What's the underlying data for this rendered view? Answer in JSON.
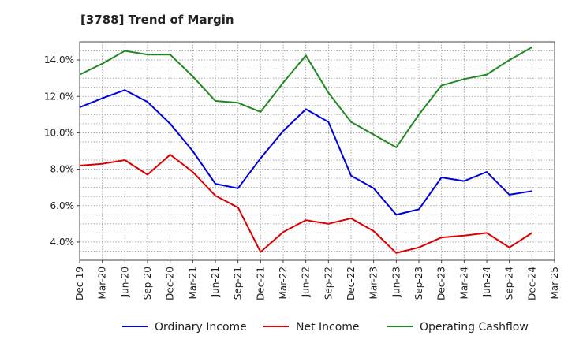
{
  "chart_data": {
    "type": "line",
    "title": "[3788]  Trend of Margin",
    "xlabel": "",
    "ylabel": "",
    "categories": [
      "Dec-19",
      "Mar-20",
      "Jun-20",
      "Sep-20",
      "Dec-20",
      "Mar-21",
      "Jun-21",
      "Sep-21",
      "Dec-21",
      "Mar-22",
      "Jun-22",
      "Sep-22",
      "Dec-22",
      "Mar-23",
      "Jun-23",
      "Sep-23",
      "Dec-23",
      "Mar-24",
      "Jun-24",
      "Sep-24",
      "Dec-24",
      "Mar-25"
    ],
    "ylim": [
      3.0,
      15.0
    ],
    "yticks": [
      4.0,
      6.0,
      8.0,
      10.0,
      12.0,
      14.0
    ],
    "ytick_labels": [
      "4.0%",
      "6.0%",
      "8.0%",
      "10.0%",
      "12.0%",
      "14.0%"
    ],
    "grid": true,
    "legend_position": "bottom",
    "series": [
      {
        "name": "Ordinary Income",
        "color": "#0000dd",
        "values": [
          11.4,
          11.9,
          12.35,
          11.7,
          10.5,
          9.0,
          7.2,
          6.95,
          8.6,
          10.1,
          11.3,
          10.6,
          7.65,
          6.95,
          5.5,
          5.8,
          7.55,
          7.35,
          7.85,
          6.6,
          6.8,
          null
        ]
      },
      {
        "name": "Net Income",
        "color": "#dd0000",
        "values": [
          8.2,
          8.3,
          8.5,
          7.7,
          8.8,
          7.85,
          6.55,
          5.9,
          3.45,
          4.55,
          5.2,
          5.0,
          5.3,
          4.6,
          3.4,
          3.7,
          4.25,
          4.35,
          4.5,
          3.7,
          4.5,
          null
        ]
      },
      {
        "name": "Operating Cashflow",
        "color": "#228822",
        "values": [
          13.2,
          13.8,
          14.5,
          14.3,
          14.3,
          13.1,
          11.75,
          11.65,
          11.15,
          12.75,
          14.25,
          12.2,
          10.6,
          9.9,
          9.2,
          11.0,
          12.6,
          12.95,
          13.2,
          14.0,
          14.7,
          null
        ]
      }
    ]
  }
}
